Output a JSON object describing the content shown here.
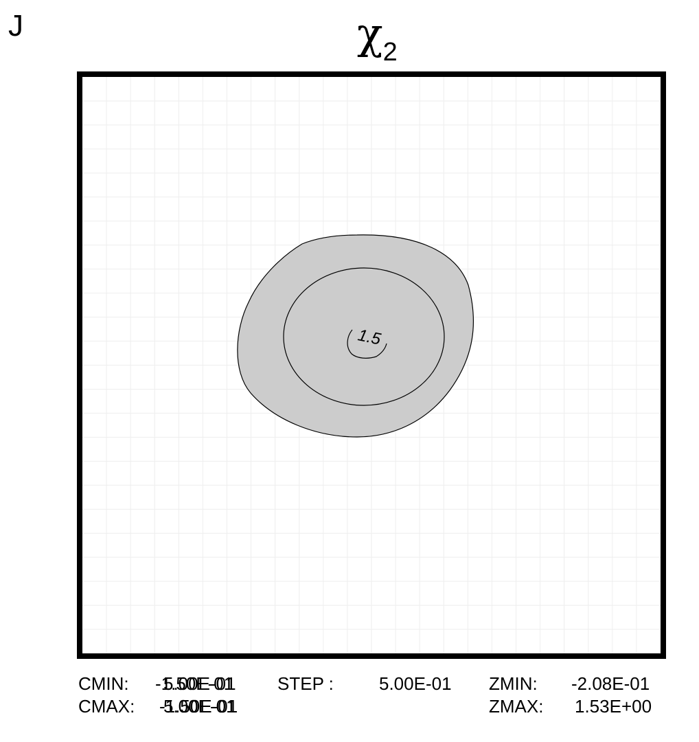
{
  "panel_letter": "J",
  "title": {
    "symbol": "χ",
    "subscript": "2"
  },
  "colors": {
    "frame": "#000000",
    "fill": "#cccccc",
    "contour": "#000000",
    "grid": "#eeeeee"
  },
  "stats": {
    "cmin_label": "CMIN:",
    "cmin_values": [
      "-1.50E-01",
      "5.00E-01"
    ],
    "cmax_label": "CMAX:",
    "cmax_values": [
      "-1.50E-01",
      "5.00E-01"
    ],
    "step_label": "STEP :",
    "step_value": "5.00E-01",
    "zmin_label": "ZMIN:",
    "zmin_value": "-2.08E-01",
    "zmax_label": "ZMAX:",
    "zmax_value": "1.53E+00"
  },
  "chart_data": {
    "type": "contour",
    "title": "χ2",
    "xlabel": "",
    "ylabel": "",
    "contour_levels": [
      0.5,
      1.0,
      1.5
    ],
    "filled_level": 0.5,
    "contour_labels": [
      {
        "text": "1.5",
        "level": 1.5
      }
    ],
    "zmin": -0.208,
    "zmax": 1.53,
    "step": 0.5,
    "grid": true
  }
}
